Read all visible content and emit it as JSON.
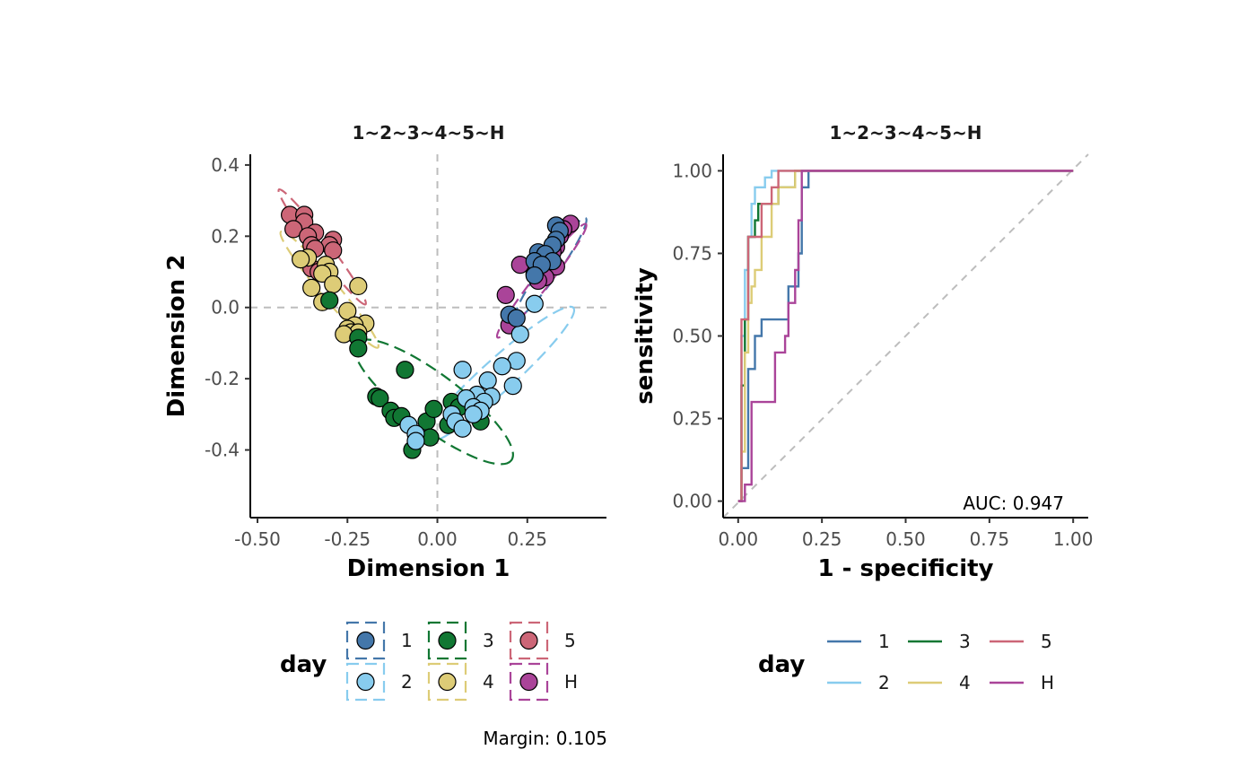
{
  "colors": {
    "1": "#4477AA",
    "2": "#88CCEE",
    "3": "#117733",
    "4": "#DDCC77",
    "5": "#CC6677",
    "H": "#AA4499",
    "ref": "#bdbdbd"
  },
  "chart_data": [
    {
      "type": "scatter",
      "title": "1~2~3~4~5~H",
      "xlabel": "Dimension 1",
      "ylabel": "Dimension 2",
      "xlim": [
        -0.52,
        0.47
      ],
      "ylim": [
        -0.59,
        0.43
      ],
      "xticks": [
        -0.5,
        -0.25,
        0,
        0.25
      ],
      "xtick_labels": [
        "-0.50",
        "-0.25",
        "0.00",
        "0.25"
      ],
      "yticks": [
        -0.4,
        -0.2,
        0,
        0.2,
        0.4
      ],
      "ytick_labels": [
        "-0.4",
        "-0.2",
        "0.0",
        "0.2",
        "0.4"
      ],
      "reference_lines": {
        "x": 0,
        "y": 0
      },
      "legend_title": "day",
      "legend_position": "bottom",
      "annotation": "Margin: 0.105",
      "series": [
        {
          "name": "1",
          "ellipse": {
            "cx": 0.315,
            "cy": 0.11,
            "rx": 0.17,
            "ry": 0.024,
            "angle_deg": 55
          },
          "points": [
            [
              0.33,
              0.23
            ],
            [
              0.34,
              0.215
            ],
            [
              0.33,
              0.19
            ],
            [
              0.32,
              0.175
            ],
            [
              0.28,
              0.155
            ],
            [
              0.3,
              0.15
            ],
            [
              0.27,
              0.13
            ],
            [
              0.32,
              0.13
            ],
            [
              0.29,
              0.12
            ],
            [
              0.27,
              0.09
            ],
            [
              0.2,
              -0.02
            ],
            [
              0.22,
              -0.03
            ]
          ]
        },
        {
          "name": "2",
          "ellipse": {
            "cx": 0.17,
            "cy": -0.19,
            "rx": 0.28,
            "ry": 0.045,
            "angle_deg": 42
          },
          "points": [
            [
              0.27,
              0.01
            ],
            [
              0.23,
              -0.075
            ],
            [
              0.07,
              -0.175
            ],
            [
              0.22,
              -0.15
            ],
            [
              0.18,
              -0.165
            ],
            [
              0.14,
              -0.205
            ],
            [
              0.21,
              -0.22
            ],
            [
              0.15,
              -0.25
            ],
            [
              0.11,
              -0.245
            ],
            [
              0.13,
              -0.265
            ],
            [
              0.08,
              -0.255
            ],
            [
              0.1,
              -0.28
            ],
            [
              0.12,
              -0.29
            ],
            [
              0.1,
              -0.3
            ],
            [
              0.04,
              -0.3
            ],
            [
              0.05,
              -0.32
            ],
            [
              0.07,
              -0.34
            ],
            [
              -0.08,
              -0.33
            ],
            [
              -0.06,
              -0.355
            ],
            [
              -0.06,
              -0.375
            ]
          ]
        },
        {
          "name": "3",
          "ellipse": {
            "cx": -0.01,
            "cy": -0.265,
            "rx": 0.27,
            "ry": 0.075,
            "angle_deg": -37
          },
          "points": [
            [
              -0.3,
              0.02
            ],
            [
              -0.22,
              -0.085
            ],
            [
              -0.22,
              -0.115
            ],
            [
              -0.09,
              -0.175
            ],
            [
              -0.17,
              -0.25
            ],
            [
              -0.16,
              -0.255
            ],
            [
              -0.13,
              -0.29
            ],
            [
              -0.12,
              -0.31
            ],
            [
              -0.1,
              -0.305
            ],
            [
              -0.03,
              -0.32
            ],
            [
              -0.01,
              -0.285
            ],
            [
              0.04,
              -0.265
            ],
            [
              0.06,
              -0.28
            ],
            [
              0.03,
              -0.33
            ],
            [
              0.12,
              -0.32
            ],
            [
              -0.02,
              -0.365
            ],
            [
              -0.07,
              -0.4
            ]
          ]
        },
        {
          "name": "4",
          "ellipse": {
            "cx": -0.3,
            "cy": 0.05,
            "rx": 0.21,
            "ry": 0.025,
            "angle_deg": -50
          },
          "points": [
            [
              -0.31,
              0.12
            ],
            [
              -0.3,
              0.1
            ],
            [
              -0.32,
              0.095
            ],
            [
              -0.36,
              0.14
            ],
            [
              -0.38,
              0.135
            ],
            [
              -0.29,
              0.065
            ],
            [
              -0.22,
              0.06
            ],
            [
              -0.35,
              0.055
            ],
            [
              -0.32,
              0.015
            ],
            [
              -0.25,
              -0.01
            ],
            [
              -0.2,
              -0.045
            ],
            [
              -0.23,
              -0.05
            ],
            [
              -0.25,
              -0.06
            ],
            [
              -0.24,
              -0.07
            ],
            [
              -0.22,
              -0.07
            ],
            [
              -0.26,
              -0.075
            ]
          ]
        },
        {
          "name": "5",
          "ellipse": {
            "cx": -0.32,
            "cy": 0.17,
            "rx": 0.2,
            "ry": 0.02,
            "angle_deg": -53
          },
          "points": [
            [
              -0.41,
              0.26
            ],
            [
              -0.37,
              0.26
            ],
            [
              -0.37,
              0.24
            ],
            [
              -0.4,
              0.22
            ],
            [
              -0.34,
              0.21
            ],
            [
              -0.36,
              0.2
            ],
            [
              -0.29,
              0.19
            ],
            [
              -0.35,
              0.175
            ],
            [
              -0.3,
              0.175
            ],
            [
              -0.34,
              0.165
            ],
            [
              -0.29,
              0.16
            ],
            [
              -0.35,
              0.11
            ],
            [
              -0.33,
              0.1
            ]
          ]
        },
        {
          "name": "H",
          "ellipse": {
            "cx": 0.29,
            "cy": 0.075,
            "rx": 0.2,
            "ry": 0.022,
            "angle_deg": 52
          },
          "points": [
            [
              0.37,
              0.235
            ],
            [
              0.35,
              0.22
            ],
            [
              0.34,
              0.2
            ],
            [
              0.33,
              0.17
            ],
            [
              0.32,
              0.155
            ],
            [
              0.31,
              0.14
            ],
            [
              0.29,
              0.13
            ],
            [
              0.3,
              0.12
            ],
            [
              0.33,
              0.115
            ],
            [
              0.29,
              0.11
            ],
            [
              0.27,
              0.095
            ],
            [
              0.3,
              0.085
            ],
            [
              0.28,
              0.075
            ],
            [
              0.23,
              0.12
            ],
            [
              0.19,
              0.035
            ],
            [
              0.2,
              -0.05
            ]
          ]
        }
      ]
    },
    {
      "type": "line",
      "title": "1~2~3~4~5~H",
      "xlabel": "1 - specificity",
      "ylabel": "sensitivity",
      "xlim": [
        -0.045,
        1.045
      ],
      "ylim": [
        -0.05,
        1.05
      ],
      "xticks": [
        0,
        0.25,
        0.5,
        0.75,
        1
      ],
      "xtick_labels": [
        "0.00",
        "0.25",
        "0.50",
        "0.75",
        "1.00"
      ],
      "yticks": [
        0,
        0.25,
        0.5,
        0.75,
        1
      ],
      "ytick_labels": [
        "0.00",
        "0.25",
        "0.50",
        "0.75",
        "1.00"
      ],
      "reference_line": "diagonal",
      "legend_title": "day",
      "legend_position": "bottom",
      "annotation": "AUC: 0.947",
      "series": [
        {
          "name": "1",
          "x": [
            0,
            0.01,
            0.01,
            0.03,
            0.03,
            0.05,
            0.05,
            0.07,
            0.07,
            0.15,
            0.15,
            0.18,
            0.18,
            0.19,
            0.19,
            0.21,
            0.21,
            1
          ],
          "y": [
            0,
            0,
            0.1,
            0.1,
            0.4,
            0.4,
            0.5,
            0.5,
            0.55,
            0.55,
            0.65,
            0.65,
            0.75,
            0.75,
            0.95,
            0.95,
            1,
            1
          ]
        },
        {
          "name": "2",
          "x": [
            0,
            0.01,
            0.01,
            0.02,
            0.02,
            0.03,
            0.03,
            0.04,
            0.04,
            0.05,
            0.05,
            0.06,
            0.06,
            0.08,
            0.08,
            0.1,
            0.1,
            1
          ],
          "y": [
            0,
            0,
            0.5,
            0.5,
            0.7,
            0.7,
            0.8,
            0.8,
            0.9,
            0.9,
            0.95,
            0.95,
            0.95,
            0.95,
            0.98,
            0.98,
            1,
            1
          ]
        },
        {
          "name": "3",
          "x": [
            0,
            0.01,
            0.01,
            0.02,
            0.02,
            0.03,
            0.03,
            0.05,
            0.05,
            0.06,
            0.06,
            0.08,
            0.08,
            0.12,
            0.12,
            0.17,
            0.17,
            1
          ],
          "y": [
            0,
            0,
            0.35,
            0.35,
            0.55,
            0.55,
            0.8,
            0.8,
            0.85,
            0.85,
            0.9,
            0.9,
            0.9,
            0.9,
            0.95,
            0.95,
            1,
            1
          ]
        },
        {
          "name": "4",
          "x": [
            0,
            0.01,
            0.01,
            0.02,
            0.02,
            0.03,
            0.03,
            0.04,
            0.04,
            0.05,
            0.05,
            0.07,
            0.07,
            0.1,
            0.1,
            0.12,
            0.12,
            0.14,
            0.14,
            0.17,
            0.17,
            1
          ],
          "y": [
            0,
            0,
            0.15,
            0.15,
            0.45,
            0.45,
            0.6,
            0.6,
            0.65,
            0.65,
            0.7,
            0.7,
            0.8,
            0.8,
            0.9,
            0.9,
            0.95,
            0.95,
            0.95,
            0.95,
            1,
            1
          ]
        },
        {
          "name": "5",
          "x": [
            0,
            0.01,
            0.01,
            0.03,
            0.03,
            0.05,
            0.05,
            0.07,
            0.07,
            0.1,
            0.1,
            0.12,
            0.12,
            0.15,
            0.15,
            1
          ],
          "y": [
            0,
            0,
            0.55,
            0.55,
            0.8,
            0.8,
            0.8,
            0.8,
            0.9,
            0.9,
            0.95,
            0.95,
            1,
            1,
            1,
            1
          ]
        },
        {
          "name": "H",
          "x": [
            0,
            0.02,
            0.02,
            0.04,
            0.04,
            0.06,
            0.06,
            0.11,
            0.11,
            0.14,
            0.14,
            0.15,
            0.15,
            0.17,
            0.17,
            0.18,
            0.18,
            0.19,
            0.19,
            1
          ],
          "y": [
            0,
            0,
            0.05,
            0.05,
            0.3,
            0.3,
            0.3,
            0.3,
            0.45,
            0.45,
            0.5,
            0.5,
            0.6,
            0.6,
            0.7,
            0.7,
            0.85,
            0.85,
            1,
            1
          ]
        }
      ]
    }
  ]
}
